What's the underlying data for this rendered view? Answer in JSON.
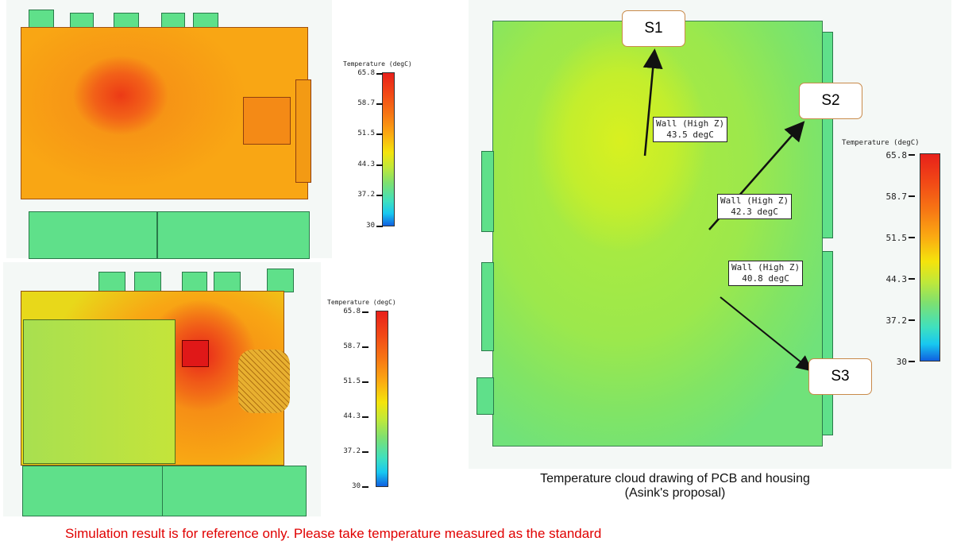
{
  "colorbar": {
    "title": "Temperature (degC)",
    "ticks": [
      "65.8",
      "58.7",
      "51.5",
      "44.3",
      "37.2",
      "30"
    ],
    "range": [
      30,
      65.8
    ],
    "colors": [
      "#e8201a",
      "#f77a14",
      "#f4e40c",
      "#7ee070",
      "#18c8f0",
      "#1060e0"
    ]
  },
  "probes": [
    {
      "label": "S1",
      "wall": "Wall (High Z)",
      "value": "43.5 degC"
    },
    {
      "label": "S2",
      "wall": "Wall (High Z)",
      "value": "42.3 degC"
    },
    {
      "label": "S3",
      "wall": "Wall (High Z)",
      "value": "40.8 degC"
    }
  ],
  "caption": {
    "line1": "Temperature cloud drawing of PCB and housing",
    "line2": "(Asink's proposal)"
  },
  "note": "Simulation result is for reference only. Please take temperature measured as the standard",
  "note_color": "#e00000"
}
